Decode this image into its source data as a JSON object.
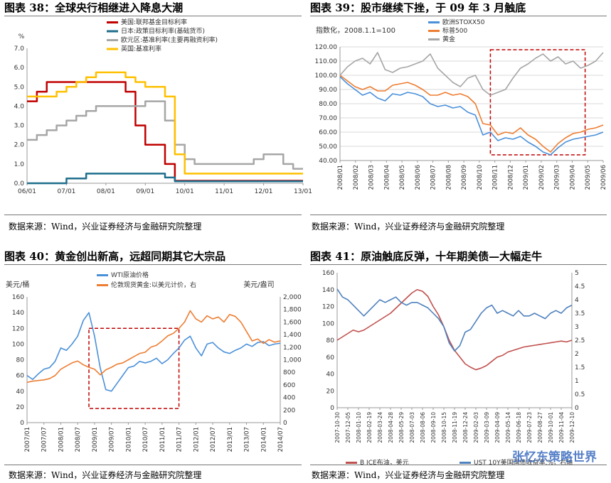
{
  "panels": [
    {
      "title": "图表 38：全球央行相继进入降息大潮",
      "source": "数据来源：Wind，兴业证券经济与金融研究院整理"
    },
    {
      "title": "图表 39：股市继续下挫，于 09 年 3 月触底",
      "source": "数据来源：Wind，兴业证券经济与金融研究院整理"
    },
    {
      "title": "图表 40：黄金创出新高，远超同期其它大宗品",
      "source": "数据来源：Wind，兴业证券经济与金融研究院整理"
    },
    {
      "title": "图表 41：原油触底反弹，十年期美债—大幅走牛",
      "source": "数据来源：Wind，兴业证券经济与金融研究院整理"
    }
  ],
  "watermark": "张忆东策略世界",
  "chart_data": [
    {
      "type": "line",
      "title": "全球央行相继进入降息大潮",
      "ylabel": "%",
      "ylim": [
        0,
        7
      ],
      "yticks": [
        "0.0",
        "1.0",
        "2.0",
        "3.0",
        "4.0",
        "5.0",
        "6.0",
        "7.0"
      ],
      "xticks": [
        "06/01",
        "07/01",
        "08/01",
        "09/01",
        "10/01",
        "11/01",
        "12/01",
        "13/01"
      ],
      "x": [
        0,
        3,
        6,
        9,
        12,
        15,
        18,
        21,
        24,
        27,
        30,
        33,
        36,
        39,
        42,
        45,
        48,
        51,
        54,
        57,
        60,
        63,
        66,
        69,
        72,
        75,
        78,
        81,
        84
      ],
      "series": [
        {
          "name": "美国:联邦基金目标利率",
          "color": "#c00000",
          "values": [
            4.25,
            4.75,
            5.25,
            5.25,
            5.25,
            5.25,
            5.25,
            5.25,
            5.25,
            5.25,
            4.75,
            3.0,
            2.0,
            2.0,
            1.0,
            0.13,
            0.13,
            0.13,
            0.13,
            0.13,
            0.13,
            0.13,
            0.13,
            0.13,
            0.13,
            0.13,
            0.13,
            0.13,
            0.13
          ]
        },
        {
          "name": "日本:政策目标利率(基础货币)",
          "color": "#1f6e8c",
          "values": [
            0,
            0,
            0,
            0,
            0.25,
            0.25,
            0.5,
            0.5,
            0.5,
            0.5,
            0.5,
            0.5,
            0.5,
            0.5,
            0.3,
            0.1,
            0.1,
            0.1,
            0.1,
            0.1,
            0.1,
            0.1,
            0.1,
            0.1,
            0.1,
            0.1,
            0.1,
            0.1,
            0.1
          ]
        },
        {
          "name": "欧元区:基准利率(主要再融资利率)",
          "color": "#a6a6a6",
          "values": [
            2.25,
            2.5,
            2.75,
            3.0,
            3.25,
            3.5,
            3.75,
            4.0,
            4.0,
            4.0,
            4.0,
            4.0,
            4.25,
            4.25,
            3.25,
            2.0,
            1.25,
            1.0,
            1.0,
            1.0,
            1.0,
            1.0,
            1.0,
            1.25,
            1.5,
            1.5,
            1.0,
            0.75,
            0.75
          ]
        },
        {
          "name": "英国:基准利率",
          "color": "#ffc000",
          "values": [
            4.5,
            4.5,
            4.5,
            4.75,
            5.0,
            5.25,
            5.5,
            5.75,
            5.75,
            5.75,
            5.5,
            5.25,
            5.0,
            5.0,
            4.5,
            1.5,
            0.5,
            0.5,
            0.5,
            0.5,
            0.5,
            0.5,
            0.5,
            0.5,
            0.5,
            0.5,
            0.5,
            0.5,
            0.5
          ]
        }
      ]
    },
    {
      "type": "line",
      "title": "股市继续下挫，于 09 年 3 月触底",
      "ylabel": "指数化，2008.1.1=100",
      "ylim": [
        40,
        120
      ],
      "yticks": [
        "40.00",
        "50.00",
        "60.00",
        "70.00",
        "80.00",
        "90.00",
        "100.00",
        "110.00",
        "120.00"
      ],
      "xticks": [
        "2008/01",
        "2008/02",
        "2008/03",
        "2008/04",
        "2008/05",
        "2008/06",
        "2008/07",
        "2008/08",
        "2008/09",
        "2008/10",
        "2008/11",
        "2008/12",
        "2009/01",
        "2009/02",
        "2009/03",
        "2009/04",
        "2009/05",
        "2009/06"
      ],
      "x": [
        0,
        0.5,
        1,
        1.5,
        2,
        2.5,
        3,
        3.5,
        4,
        4.5,
        5,
        5.5,
        6,
        6.5,
        7,
        7.5,
        8,
        8.5,
        9,
        9.5,
        10,
        10.5,
        11,
        11.5,
        12,
        12.5,
        13,
        13.5,
        14,
        14.5,
        15,
        15.5,
        16,
        16.5,
        17,
        17.5
      ],
      "series": [
        {
          "name": "欧洲STOXX50",
          "color": "#4a90d9",
          "values": [
            99,
            94,
            90,
            86,
            88,
            84,
            82,
            87,
            86,
            88,
            87,
            85,
            80,
            78,
            79,
            77,
            78,
            74,
            72,
            58,
            60,
            54,
            56,
            55,
            57,
            53,
            50,
            46,
            44,
            49,
            53,
            55,
            56,
            57,
            58,
            60
          ]
        },
        {
          "name": "标普500",
          "color": "#ed7d31",
          "values": [
            100,
            96,
            92,
            90,
            92,
            89,
            89,
            93,
            94,
            95,
            93,
            90,
            86,
            86,
            88,
            86,
            87,
            85,
            80,
            66,
            65,
            58,
            60,
            59,
            63,
            58,
            55,
            50,
            46,
            52,
            56,
            59,
            60,
            62,
            63,
            65
          ]
        },
        {
          "name": "黄金",
          "color": "#a6a6a6",
          "values": [
            100,
            106,
            110,
            112,
            108,
            116,
            104,
            102,
            105,
            106,
            108,
            110,
            115,
            105,
            100,
            95,
            92,
            98,
            100,
            90,
            86,
            88,
            90,
            98,
            105,
            108,
            112,
            115,
            110,
            113,
            108,
            110,
            105,
            107,
            110,
            116
          ]
        }
      ],
      "highlight_box": {
        "x_from": 10.0,
        "x_to": 16.3,
        "y_from": 44,
        "y_to": 118
      }
    },
    {
      "type": "line",
      "title": "黄金创出新高，远超同期其它大宗品",
      "ylabel": "美元/桶",
      "y2label": "美元/盎司",
      "ylim": [
        0,
        160
      ],
      "y2lim": [
        0,
        2000
      ],
      "yticks": [
        "0",
        "20",
        "40",
        "60",
        "80",
        "100",
        "120",
        "140",
        "160"
      ],
      "y2ticks": [
        "0",
        "200",
        "400",
        "600",
        "800",
        "1,000",
        "1,200",
        "1,400",
        "1,600",
        "1,800",
        "2,000"
      ],
      "xticks": [
        "2007/01",
        "2007/07",
        "2008/01",
        "2008/07",
        "2009/01",
        "2009/07",
        "2010/01",
        "2010/07",
        "2011/01",
        "2011/07",
        "2012/01",
        "2012/07",
        "2013/01",
        "2013/07",
        "2014/01",
        "2014/07"
      ],
      "x": [
        0,
        2,
        4,
        6,
        8,
        10,
        12,
        14,
        16,
        18,
        20,
        22,
        24,
        26,
        28,
        30,
        32,
        34,
        36,
        38,
        40,
        42,
        44,
        46,
        48,
        50,
        52,
        54,
        56,
        58,
        60,
        62,
        64,
        66,
        68,
        70,
        72,
        74,
        76,
        78,
        80,
        82,
        84,
        86,
        88,
        90
      ],
      "series": [
        {
          "name": "WTI原油价格",
          "color": "#4a90d9",
          "axis": "left",
          "values": [
            60,
            55,
            62,
            68,
            70,
            78,
            95,
            92,
            100,
            110,
            130,
            140,
            110,
            70,
            42,
            40,
            50,
            60,
            70,
            72,
            78,
            76,
            78,
            82,
            75,
            80,
            88,
            95,
            105,
            110,
            95,
            85,
            100,
            102,
            95,
            90,
            88,
            92,
            95,
            100,
            97,
            102,
            103,
            98,
            100,
            101
          ]
        },
        {
          "name": "伦敦现货黄金:以美元计价，右",
          "color": "#ed7d31",
          "axis": "right",
          "values": [
            640,
            660,
            670,
            680,
            700,
            750,
            850,
            900,
            950,
            980,
            920,
            880,
            850,
            760,
            840,
            880,
            930,
            950,
            1000,
            1050,
            1100,
            1120,
            1200,
            1230,
            1300,
            1380,
            1420,
            1500,
            1600,
            1780,
            1650,
            1600,
            1700,
            1650,
            1680,
            1600,
            1720,
            1690,
            1600,
            1450,
            1300,
            1330,
            1260,
            1320,
            1280,
            1300
          ]
        }
      ],
      "highlight_box": {
        "x_from": 22,
        "x_to": 54,
        "y_from": 18,
        "y_to": 120
      }
    },
    {
      "type": "line",
      "title": "原油触底反弹，十年期美债—大幅走牛",
      "ylim": [
        0,
        160
      ],
      "y2lim": [
        0,
        5
      ],
      "yticks": [
        "0",
        "20",
        "40",
        "60",
        "80",
        "100",
        "120",
        "140",
        "160"
      ],
      "y2ticks": [
        "0",
        "0.5",
        "1",
        "1.5",
        "2",
        "2.5",
        "3",
        "3.5",
        "4",
        "4.5",
        "5"
      ],
      "xticks": [
        "2007-10-30",
        "2007-12-05",
        "2008-01-10",
        "2008-02-19",
        "2008-03-24",
        "2008-04-28",
        "2008-05-29",
        "2008-07-03",
        "2008-08-06",
        "2008-09-10",
        "2008-10-15",
        "2008-11-19",
        "2008-12-24",
        "2009-02-03",
        "2009-03-09",
        "2009-04-09",
        "2009-05-14",
        "2009-06-18",
        "2009-07-23",
        "2009-08-27",
        "2009-10-01",
        "2009-11-04",
        "2009-12-10"
      ],
      "x": [
        0,
        1,
        2,
        3,
        4,
        5,
        6,
        7,
        8,
        9,
        10,
        11,
        12,
        13,
        14,
        15,
        16,
        17,
        18,
        19,
        20,
        21,
        22,
        23,
        24,
        25,
        26,
        27,
        28,
        29,
        30,
        31,
        32,
        33,
        34,
        35,
        36,
        37,
        38,
        39,
        40,
        41,
        42,
        43,
        44
      ],
      "series": [
        {
          "name": "B ICE布油，美元",
          "color": "#c0504d",
          "axis": "left",
          "values": [
            80,
            84,
            88,
            92,
            90,
            92,
            96,
            100,
            104,
            108,
            112,
            118,
            124,
            130,
            136,
            140,
            138,
            132,
            120,
            110,
            96,
            80,
            68,
            60,
            52,
            48,
            45,
            47,
            50,
            55,
            60,
            62,
            66,
            68,
            70,
            72,
            73,
            74,
            75,
            76,
            77,
            78,
            79,
            78,
            80
          ]
        },
        {
          "name": "UST 10Y美国国债收益率,%，右轴",
          "color": "#4f81bd",
          "axis": "right",
          "values": [
            4.4,
            4.1,
            4.0,
            3.8,
            3.6,
            3.4,
            3.6,
            3.8,
            4.0,
            3.9,
            4.0,
            4.1,
            3.9,
            3.8,
            3.9,
            3.9,
            3.8,
            3.7,
            3.5,
            3.3,
            3.0,
            2.4,
            2.1,
            2.3,
            2.8,
            2.9,
            3.2,
            3.5,
            3.7,
            3.8,
            3.5,
            3.6,
            3.5,
            3.4,
            3.6,
            3.4,
            3.4,
            3.5,
            3.4,
            3.3,
            3.5,
            3.6,
            3.5,
            3.7,
            3.8
          ]
        }
      ]
    }
  ]
}
